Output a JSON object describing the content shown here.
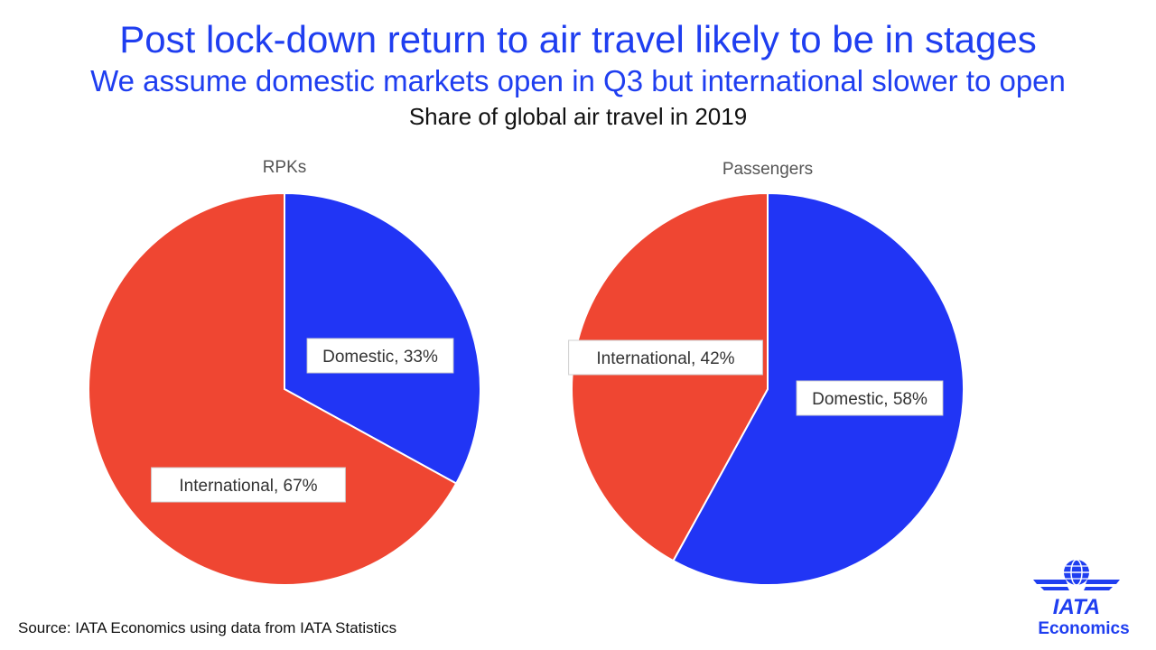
{
  "title": "Post lock-down return to air travel likely to be in stages",
  "subtitle": "We assume domestic markets open in Q3 but international slower to open",
  "caption": "Share of global air travel in 2019",
  "source": "Source: IATA Economics using data from IATA Statistics",
  "logo": {
    "brand": "IATA",
    "label": "Economics",
    "icon": "globe-wings-icon"
  },
  "colors": {
    "domestic": "#2135f5",
    "international": "#ef4632",
    "label_border": "#d0d0d0"
  },
  "chart_data": [
    {
      "type": "pie",
      "title": "RPKs",
      "slices": [
        {
          "name": "Domestic",
          "value": 33,
          "label": "Domestic, 33%"
        },
        {
          "name": "International",
          "value": 67,
          "label": "International, 67%"
        }
      ]
    },
    {
      "type": "pie",
      "title": "Passengers",
      "slices": [
        {
          "name": "Domestic",
          "value": 58,
          "label": "Domestic, 58%"
        },
        {
          "name": "International",
          "value": 42,
          "label": "International, 42%"
        }
      ]
    }
  ]
}
